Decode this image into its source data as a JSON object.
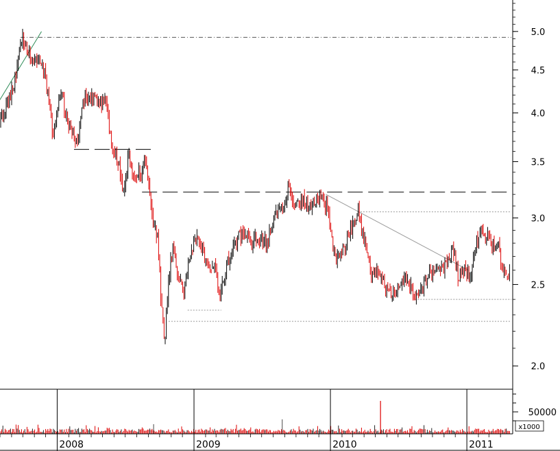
{
  "chart_data": {
    "type": "candlestick",
    "price_axis": {
      "scale": "log",
      "ticks": [
        "2.0",
        "2.5",
        "3.0",
        "3.5",
        "4.0",
        "4.5",
        "5.0"
      ],
      "ylim": [
        1.88,
        5.45
      ]
    },
    "volume_axis": {
      "tick": "50000",
      "unit_label": "x1000"
    },
    "time_axis": {
      "labels": [
        "2008",
        "2009",
        "2010",
        "2011"
      ],
      "range": [
        "2007-08",
        "2011-04"
      ]
    },
    "colors": {
      "up": "#000000",
      "down": "#dd0000",
      "volume": "#dd0000",
      "trendline": "#2e8b57"
    },
    "price_path": [
      {
        "t": "2007-08-01",
        "p": 3.9
      },
      {
        "t": "2007-08-20",
        "p": 4.1
      },
      {
        "t": "2007-09-10",
        "p": 4.35
      },
      {
        "t": "2007-10-01",
        "p": 4.95
      },
      {
        "t": "2007-10-15",
        "p": 4.7
      },
      {
        "t": "2007-11-01",
        "p": 4.6
      },
      {
        "t": "2007-11-20",
        "p": 4.65
      },
      {
        "t": "2007-12-05",
        "p": 4.25
      },
      {
        "t": "2007-12-20",
        "p": 3.75
      },
      {
        "t": "2008-01-10",
        "p": 4.3
      },
      {
        "t": "2008-01-25",
        "p": 3.95
      },
      {
        "t": "2008-02-10",
        "p": 3.8
      },
      {
        "t": "2008-02-25",
        "p": 3.65
      },
      {
        "t": "2008-03-10",
        "p": 4.15
      },
      {
        "t": "2008-04-01",
        "p": 4.2
      },
      {
        "t": "2008-04-20",
        "p": 4.15
      },
      {
        "t": "2008-05-10",
        "p": 4.1
      },
      {
        "t": "2008-05-25",
        "p": 3.7
      },
      {
        "t": "2008-06-10",
        "p": 3.5
      },
      {
        "t": "2008-06-25",
        "p": 3.25
      },
      {
        "t": "2008-07-10",
        "p": 3.55
      },
      {
        "t": "2008-07-25",
        "p": 3.35
      },
      {
        "t": "2008-08-10",
        "p": 3.4
      },
      {
        "t": "2008-08-25",
        "p": 3.5
      },
      {
        "t": "2008-09-10",
        "p": 3.0
      },
      {
        "t": "2008-09-25",
        "p": 2.85
      },
      {
        "t": "2008-10-05",
        "p": 2.4
      },
      {
        "t": "2008-10-15",
        "p": 2.15
      },
      {
        "t": "2008-10-25",
        "p": 2.55
      },
      {
        "t": "2008-11-05",
        "p": 2.75
      },
      {
        "t": "2008-11-20",
        "p": 2.55
      },
      {
        "t": "2008-12-05",
        "p": 2.45
      },
      {
        "t": "2008-12-20",
        "p": 2.7
      },
      {
        "t": "2009-01-10",
        "p": 2.85
      },
      {
        "t": "2009-01-25",
        "p": 2.75
      },
      {
        "t": "2009-02-10",
        "p": 2.6
      },
      {
        "t": "2009-02-25",
        "p": 2.65
      },
      {
        "t": "2009-03-10",
        "p": 2.45
      },
      {
        "t": "2009-03-25",
        "p": 2.55
      },
      {
        "t": "2009-04-10",
        "p": 2.75
      },
      {
        "t": "2009-04-25",
        "p": 2.8
      },
      {
        "t": "2009-05-15",
        "p": 2.9
      },
      {
        "t": "2009-06-05",
        "p": 2.8
      },
      {
        "t": "2009-06-25",
        "p": 2.85
      },
      {
        "t": "2009-07-15",
        "p": 2.8
      },
      {
        "t": "2009-08-05",
        "p": 3.0
      },
      {
        "t": "2009-08-25",
        "p": 3.1
      },
      {
        "t": "2009-09-10",
        "p": 3.25
      },
      {
        "t": "2009-09-25",
        "p": 3.1
      },
      {
        "t": "2009-10-15",
        "p": 3.15
      },
      {
        "t": "2009-11-05",
        "p": 3.1
      },
      {
        "t": "2009-11-25",
        "p": 3.12
      },
      {
        "t": "2009-12-10",
        "p": 3.2
      },
      {
        "t": "2009-12-25",
        "p": 3.05
      },
      {
        "t": "2010-01-15",
        "p": 2.65
      },
      {
        "t": "2010-02-05",
        "p": 2.75
      },
      {
        "t": "2010-02-25",
        "p": 2.9
      },
      {
        "t": "2010-03-15",
        "p": 3.05
      },
      {
        "t": "2010-04-05",
        "p": 2.8
      },
      {
        "t": "2010-04-20",
        "p": 2.55
      },
      {
        "t": "2010-05-10",
        "p": 2.6
      },
      {
        "t": "2010-05-25",
        "p": 2.5
      },
      {
        "t": "2010-06-15",
        "p": 2.45
      },
      {
        "t": "2010-07-05",
        "p": 2.5
      },
      {
        "t": "2010-07-25",
        "p": 2.55
      },
      {
        "t": "2010-08-15",
        "p": 2.42
      },
      {
        "t": "2010-09-05",
        "p": 2.48
      },
      {
        "t": "2010-09-25",
        "p": 2.6
      },
      {
        "t": "2010-10-15",
        "p": 2.58
      },
      {
        "t": "2010-11-05",
        "p": 2.65
      },
      {
        "t": "2010-11-25",
        "p": 2.75
      },
      {
        "t": "2010-12-10",
        "p": 2.55
      },
      {
        "t": "2010-12-25",
        "p": 2.6
      },
      {
        "t": "2011-01-10",
        "p": 2.55
      },
      {
        "t": "2011-01-25",
        "p": 2.8
      },
      {
        "t": "2011-02-10",
        "p": 2.9
      },
      {
        "t": "2011-02-25",
        "p": 2.85
      },
      {
        "t": "2011-03-10",
        "p": 2.75
      },
      {
        "t": "2011-03-25",
        "p": 2.8
      },
      {
        "t": "2011-04-05",
        "p": 2.6
      },
      {
        "t": "2011-04-20",
        "p": 2.58
      }
    ],
    "support_resistance_lines": [
      {
        "style": "dash-dot",
        "price": 4.92,
        "from": "2007-09-25",
        "to": "2011-04-30"
      },
      {
        "style": "long-dash",
        "price": 3.62,
        "from": "2008-02-15",
        "to": "2008-09-15"
      },
      {
        "style": "long-dash",
        "price": 3.22,
        "from": "2008-08-15",
        "to": "2011-04-30"
      },
      {
        "style": "fine-dot",
        "price": 3.05,
        "from": "2010-03-15",
        "to": "2011-04-30"
      },
      {
        "style": "fine-dot",
        "price": 2.4,
        "from": "2010-08-15",
        "to": "2011-04-30"
      },
      {
        "style": "fine-dot",
        "price": 2.33,
        "from": "2008-12-15",
        "to": "2009-03-15"
      },
      {
        "style": "fine-dot",
        "price": 2.26,
        "from": "2008-10-25",
        "to": "2011-04-30"
      }
    ],
    "trend_lines": [
      {
        "color": "green",
        "from": {
          "t": "2007-07-25",
          "p": 4.1
        },
        "to": {
          "t": "2007-11-20",
          "p": 5.0
        }
      },
      {
        "color": "gray",
        "from": {
          "t": "2009-12-20",
          "p": 3.2
        },
        "to": {
          "t": "2011-01-05",
          "p": 2.6
        }
      }
    ],
    "volume_spikes": [
      {
        "t": "2010-05-15",
        "v": 75000
      },
      {
        "t": "2009-08-25",
        "v": 33000
      },
      {
        "t": "2008-09-15",
        "v": 22000
      }
    ]
  }
}
